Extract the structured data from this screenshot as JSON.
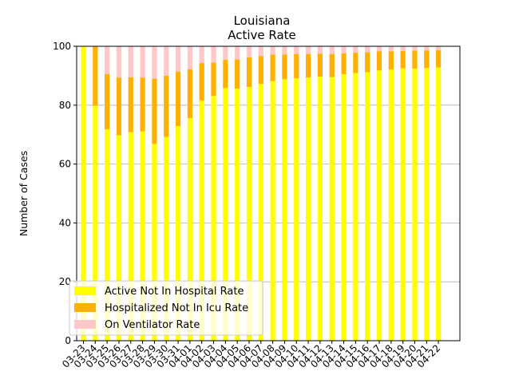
{
  "chart_data": {
    "type": "bar",
    "stacked": true,
    "title": "Louisiana",
    "subtitle": "Active Rate",
    "xlabel": "",
    "ylabel": "Number of Cases",
    "ylim": [
      0,
      100
    ],
    "yticks": [
      0,
      20,
      40,
      60,
      80,
      100
    ],
    "grid": "y",
    "legend_placement": "lower-left",
    "categories": [
      "03-23",
      "03-24",
      "03-25",
      "03-26",
      "03-27",
      "03-28",
      "03-29",
      "03-30",
      "03-31",
      "04-01",
      "04-02",
      "04-03",
      "04-04",
      "04-05",
      "04-06",
      "04-07",
      "04-08",
      "04-09",
      "04-10",
      "04-11",
      "04-12",
      "04-13",
      "04-14",
      "04-15",
      "04-16",
      "04-17",
      "04-18",
      "04-19",
      "04-20",
      "04-21",
      "04-22"
    ],
    "series": [
      {
        "name": "Active Not In Hospital Rate",
        "color": "#ffff00",
        "values": [
          100,
          79.8,
          71.8,
          69.8,
          70.8,
          71.1,
          66.8,
          69.2,
          72.9,
          75.6,
          81.5,
          83.1,
          85.8,
          85.6,
          86.2,
          87.2,
          88.2,
          88.8,
          89.1,
          89.4,
          89.7,
          89.5,
          90.5,
          90.9,
          91.2,
          91.8,
          92.1,
          92.5,
          92.4,
          92.6,
          92.8
        ]
      },
      {
        "name": "Hospitalized Not In Icu Rate",
        "color": "#ffb000",
        "values": [
          0,
          20.2,
          18.8,
          19.6,
          18.7,
          18.3,
          22.2,
          20.8,
          18.5,
          16.6,
          12.8,
          11.4,
          9.6,
          10.0,
          10.1,
          9.5,
          9.0,
          8.4,
          8.3,
          8.0,
          7.8,
          7.9,
          7.1,
          6.9,
          6.8,
          6.5,
          6.2,
          5.9,
          6.1,
          6.0,
          5.9
        ]
      },
      {
        "name": "On Ventilator Rate",
        "color": "#ffc8c8",
        "values": [
          0,
          0,
          9.4,
          10.6,
          10.5,
          10.6,
          11.0,
          10.0,
          8.6,
          7.8,
          5.7,
          5.5,
          4.6,
          4.4,
          3.7,
          3.3,
          2.8,
          2.8,
          2.6,
          2.6,
          2.5,
          2.6,
          2.4,
          2.2,
          2.0,
          1.7,
          1.7,
          1.6,
          1.5,
          1.4,
          1.3
        ]
      }
    ]
  }
}
